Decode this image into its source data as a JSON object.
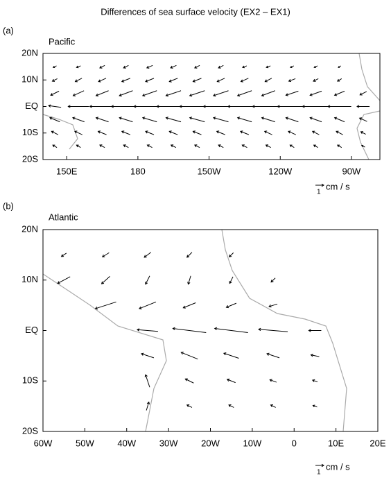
{
  "title": "Differences of sea surface velocity (EX2 – EX1)",
  "chart_data": [
    {
      "type": "quiver",
      "label": "(a)",
      "title": "Pacific",
      "xlim": [
        140,
        282
      ],
      "ylim": [
        -20,
        20
      ],
      "xticks": [
        {
          "value": 150,
          "label": "150E"
        },
        180,
        {
          "value": 210,
          "label": "150W"
        },
        {
          "value": 240,
          "label": "120W"
        },
        {
          "value": 270,
          "label": "90W"
        }
      ],
      "yticks": [
        {
          "value": -20,
          "label": "20S"
        },
        {
          "value": -10,
          "label": "10S"
        },
        {
          "value": 0,
          "label": "EQ"
        },
        {
          "value": 10,
          "label": "10N"
        },
        {
          "value": 20,
          "label": "20N"
        }
      ],
      "key": {
        "value": 1,
        "unit": "cm / s"
      },
      "color": "#000000",
      "lon": [
        145,
        155,
        165,
        175,
        185,
        195,
        205,
        215,
        225,
        235,
        245,
        255,
        265,
        275
      ],
      "lat": [
        15,
        10,
        5,
        0,
        -5,
        -10,
        -15
      ],
      "u": [
        [
          -0.4,
          -0.5,
          -0.6,
          -0.6,
          -0.7,
          -0.7,
          -0.6,
          -0.6,
          -0.5,
          -0.5,
          -0.4,
          -0.4,
          -0.3,
          null
        ],
        [
          -0.6,
          -0.8,
          -0.9,
          -1.0,
          -1.0,
          -1.0,
          -1.0,
          -0.9,
          -0.9,
          -0.8,
          -0.8,
          -0.6,
          -0.5,
          null
        ],
        [
          -1.0,
          -1.3,
          -1.5,
          -1.6,
          -1.7,
          -1.8,
          -1.8,
          -1.8,
          -1.7,
          -1.6,
          -1.5,
          -1.4,
          -1.2,
          -0.8
        ],
        [
          -1.5,
          -2.5,
          -3.0,
          -3.5,
          -3.8,
          -4.0,
          -4.2,
          -4.2,
          -4.0,
          -3.8,
          -3.5,
          -3.2,
          -2.8,
          -1.5
        ],
        [
          -1.2,
          -1.4,
          -1.5,
          -1.6,
          -1.7,
          -1.8,
          -1.8,
          -1.8,
          -1.7,
          -1.6,
          -1.5,
          -1.4,
          -1.2,
          -0.9
        ],
        [
          -0.8,
          -0.9,
          -1.0,
          -1.0,
          -1.0,
          -1.0,
          -1.0,
          -1.0,
          -1.0,
          -0.9,
          -0.9,
          -0.8,
          -0.8,
          -0.6
        ],
        [
          -0.5,
          -0.5,
          -0.6,
          -0.6,
          -0.6,
          -0.6,
          -0.6,
          -0.6,
          -0.6,
          -0.6,
          -0.5,
          -0.5,
          -0.5,
          -0.4
        ]
      ],
      "v": [
        [
          -0.2,
          -0.2,
          -0.3,
          -0.3,
          -0.3,
          -0.3,
          -0.3,
          -0.3,
          -0.2,
          -0.2,
          -0.2,
          -0.2,
          -0.2,
          null
        ],
        [
          -0.3,
          -0.4,
          -0.4,
          -0.4,
          -0.4,
          -0.4,
          -0.4,
          -0.4,
          -0.4,
          -0.4,
          -0.3,
          -0.3,
          -0.3,
          null
        ],
        [
          -0.5,
          -0.6,
          -0.6,
          -0.6,
          -0.6,
          -0.6,
          -0.6,
          -0.6,
          -0.6,
          -0.6,
          -0.5,
          -0.5,
          -0.5,
          -0.4
        ],
        [
          0.2,
          0,
          0,
          0,
          0,
          0,
          0,
          0,
          0,
          0,
          0,
          0,
          0,
          0
        ],
        [
          0.5,
          0.5,
          0.5,
          0.5,
          0.5,
          0.5,
          0.5,
          0.5,
          0.5,
          0.5,
          0.5,
          0.5,
          0.5,
          0.4
        ],
        [
          0.4,
          0.4,
          0.4,
          0.4,
          0.4,
          0.4,
          0.4,
          0.4,
          0.4,
          0.4,
          0.4,
          0.4,
          0.4,
          0.3
        ],
        [
          0.3,
          0.3,
          0.3,
          0.3,
          0.3,
          0.3,
          0.3,
          0.3,
          0.3,
          0.3,
          0.3,
          0.3,
          0.3,
          0.2
        ]
      ]
    },
    {
      "type": "quiver",
      "label": "(b)",
      "title": "Atlantic",
      "xlim": [
        -60,
        20
      ],
      "ylim": [
        -20,
        20
      ],
      "xticks": [
        {
          "value": -60,
          "label": "60W"
        },
        {
          "value": -50,
          "label": "50W"
        },
        {
          "value": -40,
          "label": "40W"
        },
        {
          "value": -30,
          "label": "30W"
        },
        {
          "value": -20,
          "label": "20W"
        },
        {
          "value": -10,
          "label": "10W"
        },
        0,
        {
          "value": 10,
          "label": "10E"
        },
        {
          "value": 20,
          "label": "20E"
        }
      ],
      "yticks": [
        {
          "value": -20,
          "label": "20S"
        },
        {
          "value": -10,
          "label": "10S"
        },
        {
          "value": 0,
          "label": "EQ"
        },
        {
          "value": 10,
          "label": "10N"
        },
        {
          "value": 20,
          "label": "20N"
        }
      ],
      "key": {
        "value": 1,
        "unit": "cm / s"
      },
      "color": "#000000",
      "lon": [
        -55,
        -45,
        -35,
        -25,
        -15,
        -5,
        5,
        15
      ],
      "lat": [
        15,
        10,
        5,
        0,
        -5,
        -10,
        -15
      ],
      "u": [
        [
          -0.6,
          -0.8,
          -0.8,
          -0.6,
          -0.5,
          null,
          null,
          null
        ],
        [
          -1.5,
          -1.0,
          -0.5,
          -0.3,
          -0.4,
          -0.5,
          null,
          null
        ],
        [
          null,
          -2.5,
          -2.0,
          -1.5,
          -1.2,
          -1.0,
          null,
          null
        ],
        [
          null,
          null,
          -2.5,
          -4.0,
          -4.0,
          -3.5,
          -1.5,
          null
        ],
        [
          null,
          null,
          -1.5,
          -2.0,
          -1.8,
          -1.5,
          -1.0,
          null
        ],
        [
          null,
          null,
          -0.5,
          -1.0,
          -1.0,
          -0.8,
          -0.6,
          null
        ],
        [
          null,
          null,
          0.3,
          -0.6,
          -0.6,
          -0.6,
          -0.5,
          null
        ]
      ],
      "v": [
        [
          -0.4,
          -0.5,
          -0.6,
          -0.6,
          -0.5,
          null,
          null,
          null
        ],
        [
          -0.8,
          -0.9,
          -1.0,
          -1.0,
          -0.8,
          -0.5,
          null,
          null
        ],
        [
          null,
          -0.8,
          -0.8,
          -0.6,
          -0.5,
          -0.3,
          null,
          null
        ],
        [
          null,
          null,
          0.2,
          0.5,
          0.5,
          0.3,
          0,
          null
        ],
        [
          null,
          null,
          0.5,
          0.8,
          0.6,
          0.5,
          0.2,
          null
        ],
        [
          null,
          null,
          1.5,
          0.5,
          0.4,
          0.3,
          0.2,
          null
        ],
        [
          null,
          null,
          1.0,
          0.3,
          0.3,
          0.3,
          0.2,
          null
        ]
      ]
    }
  ]
}
